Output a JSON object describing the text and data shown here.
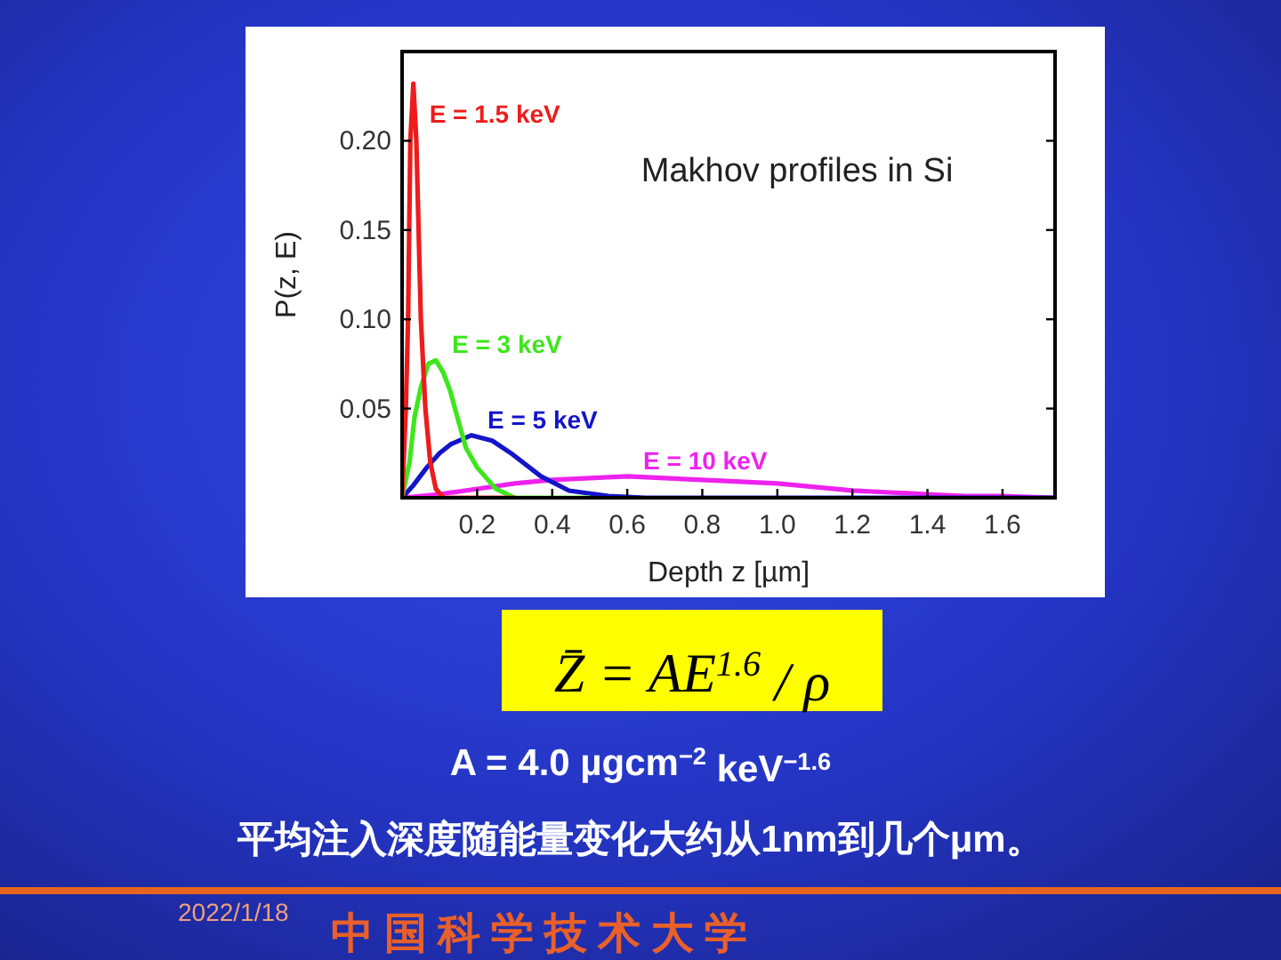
{
  "chart_data": {
    "type": "line",
    "title": "Makhov profiles in Si",
    "xlabel": "Depth z [µm]",
    "ylabel": "P(z, E)",
    "xlim": [
      0,
      1.74
    ],
    "ylim": [
      0,
      0.25
    ],
    "xticks": [
      0.2,
      0.4,
      0.6,
      0.8,
      {
        "value": 1.0,
        "label": "1.0"
      },
      1.2,
      1.4,
      1.6
    ],
    "yticks": [
      0.05,
      {
        "value": 0.1,
        "label": "0.10"
      },
      0.15,
      {
        "value": 0.2,
        "label": "0.20"
      }
    ],
    "series": [
      {
        "name": "E = 1.5 keV",
        "color": "#ee1c1c",
        "x": [
          0,
          0.01,
          0.016,
          0.022,
          0.03,
          0.038,
          0.05,
          0.062,
          0.075,
          0.09,
          0.11,
          0.3
        ],
        "values": [
          0,
          0.05,
          0.1,
          0.2,
          0.232,
          0.2,
          0.1,
          0.05,
          0.02,
          0.005,
          0,
          0
        ]
      },
      {
        "name": "E = 3 keV",
        "color": "#3ee61e",
        "x": [
          0,
          0.02,
          0.033,
          0.05,
          0.07,
          0.09,
          0.11,
          0.128,
          0.15,
          0.17,
          0.2,
          0.25,
          0.3,
          0.5
        ],
        "values": [
          0,
          0.02,
          0.045,
          0.062,
          0.075,
          0.077,
          0.07,
          0.06,
          0.043,
          0.028,
          0.017,
          0.005,
          0,
          0
        ]
      },
      {
        "name": "E = 5 keV",
        "color": "#1414c8",
        "x": [
          0,
          0.03,
          0.066,
          0.1,
          0.13,
          0.185,
          0.24,
          0.29,
          0.37,
          0.445,
          0.55,
          0.65,
          1.74
        ],
        "values": [
          0,
          0.007,
          0.017,
          0.025,
          0.03,
          0.035,
          0.032,
          0.025,
          0.012,
          0.004,
          0.001,
          0,
          0
        ]
      },
      {
        "name": "E = 10 keV",
        "color": "#ee22ee",
        "x": [
          0,
          0.1,
          0.2,
          0.3,
          0.4,
          0.5,
          0.6,
          0.7,
          0.8,
          0.9,
          1.0,
          1.1,
          1.2,
          1.3,
          1.4,
          1.5,
          1.6,
          1.74
        ],
        "values": [
          0,
          0.002,
          0.005,
          0.008,
          0.01,
          0.011,
          0.012,
          0.011,
          0.01,
          0.009,
          0.008,
          0.006,
          0.004,
          0.003,
          0.002,
          0.001,
          0.001,
          0
        ]
      }
    ],
    "annotations": [
      "Z̄ = AE$^{1.6}$ / ρ",
      "A = 4.0 µgcm$^{−2}$ keV$^{−1.6}$",
      "平均注入深度随能量变化大约从1nm到几个μm。",
      "2022/1/18",
      "中国科学技术大学"
    ]
  }
}
